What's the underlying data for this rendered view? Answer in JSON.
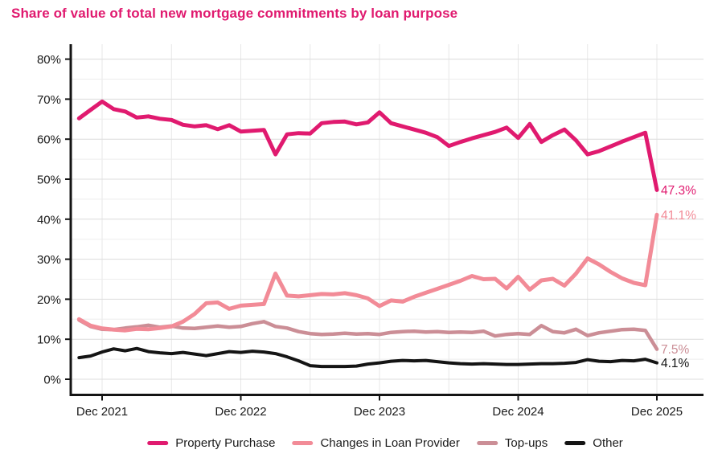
{
  "chart_data": {
    "type": "line",
    "title": "Share of value of total new mortgage commitments by loan purpose",
    "frequency": "monthly",
    "x_start": "Oct 2021",
    "x_end": "Dec 2025",
    "months": [
      "Oct 2021",
      "Nov 2021",
      "Dec 2021",
      "Jan 2022",
      "Feb 2022",
      "Mar 2022",
      "Apr 2022",
      "May 2022",
      "Jun 2022",
      "Jul 2022",
      "Aug 2022",
      "Sep 2022",
      "Oct 2022",
      "Nov 2022",
      "Dec 2022",
      "Jan 2023",
      "Feb 2023",
      "Mar 2023",
      "Apr 2023",
      "May 2023",
      "Jun 2023",
      "Jul 2023",
      "Aug 2023",
      "Sep 2023",
      "Oct 2023",
      "Nov 2023",
      "Dec 2023",
      "Jan 2024",
      "Feb 2024",
      "Mar 2024",
      "Apr 2024",
      "May 2024",
      "Jun 2024",
      "Jul 2024",
      "Aug 2024",
      "Sep 2024",
      "Oct 2024",
      "Nov 2024",
      "Dec 2024",
      "Jan 2025",
      "Feb 2025",
      "Mar 2025",
      "Apr 2025",
      "May 2025",
      "Jun 2025",
      "Jul 2025",
      "Aug 2025",
      "Sep 2025",
      "Oct 2025",
      "Nov 2025",
      "Dec 2025"
    ],
    "x_tick_labels": [
      "Dec 2021",
      "Dec 2022",
      "Dec 2023",
      "Dec 2024",
      "Dec 2025"
    ],
    "x_tick_month_indices": [
      2,
      14,
      26,
      38,
      50
    ],
    "x_gridline_month_indices": [
      2,
      8,
      14,
      20,
      26,
      32,
      38,
      44,
      50
    ],
    "y_tick_labels": [
      "0%",
      "10%",
      "20%",
      "30%",
      "40%",
      "50%",
      "60%",
      "70%",
      "80%"
    ],
    "y_tick_values": [
      0,
      10,
      20,
      30,
      40,
      50,
      60,
      70,
      80
    ],
    "y_minor_step_percent": 5,
    "ylim": [
      0,
      80
    ],
    "grid": true,
    "legend_position": "bottom",
    "axis_color": "#141414",
    "major_gridline_color": "#dcdcdc",
    "minor_gridline_color": "#ededed",
    "series": [
      {
        "name": "Property Purchase",
        "color": "#E01A6F",
        "line_width": 5,
        "end_label": "47.3%",
        "values": [
          65.2,
          67.3,
          69.4,
          67.5,
          66.9,
          65.4,
          65.7,
          65.1,
          64.8,
          63.6,
          63.2,
          63.5,
          62.5,
          63.5,
          61.9,
          62.1,
          62.3,
          56.2,
          61.2,
          61.5,
          61.4,
          64.0,
          64.3,
          64.4,
          63.7,
          64.2,
          66.7,
          64.0,
          63.2,
          62.4,
          61.6,
          60.5,
          58.3,
          59.3,
          60.2,
          61.0,
          61.8,
          62.9,
          60.3,
          63.8,
          59.3,
          61.0,
          62.4,
          59.7,
          56.2,
          57.0,
          58.2,
          59.4,
          60.5,
          61.6,
          47.3
        ]
      },
      {
        "name": "Changes in Loan Provider",
        "color": "#F28B97",
        "line_width": 5,
        "end_label": "41.1%",
        "values": [
          15.0,
          13.4,
          12.7,
          12.4,
          12.2,
          12.6,
          12.5,
          12.8,
          13.2,
          14.4,
          16.3,
          19.0,
          19.2,
          17.6,
          18.4,
          18.6,
          18.8,
          26.4,
          20.9,
          20.7,
          21.0,
          21.3,
          21.2,
          21.5,
          21.0,
          20.2,
          18.3,
          19.7,
          19.4,
          20.6,
          21.6,
          22.6,
          23.6,
          24.6,
          25.8,
          25.0,
          25.1,
          22.7,
          25.6,
          22.4,
          24.7,
          25.1,
          23.4,
          26.4,
          30.2,
          28.7,
          26.8,
          25.2,
          24.1,
          23.5,
          41.1
        ]
      },
      {
        "name": "Top-ups",
        "color": "#CB8E96",
        "line_width": 4.5,
        "end_label": "7.5%",
        "values": [
          14.8,
          13.2,
          12.5,
          12.4,
          12.8,
          13.1,
          13.5,
          13.0,
          13.3,
          12.8,
          12.7,
          13.0,
          13.3,
          13.0,
          13.2,
          13.9,
          14.4,
          13.2,
          12.8,
          11.9,
          11.4,
          11.2,
          11.3,
          11.5,
          11.3,
          11.4,
          11.2,
          11.7,
          11.9,
          12.0,
          11.8,
          11.9,
          11.7,
          11.8,
          11.7,
          12.0,
          10.8,
          11.2,
          11.4,
          11.2,
          13.4,
          11.9,
          11.6,
          12.5,
          10.9,
          11.6,
          12.0,
          12.4,
          12.5,
          12.2,
          7.5
        ]
      },
      {
        "name": "Other",
        "color": "#141414",
        "line_width": 4,
        "end_label": "4.1%",
        "values": [
          5.4,
          5.8,
          6.8,
          7.6,
          7.1,
          7.7,
          6.9,
          6.6,
          6.4,
          6.7,
          6.3,
          5.9,
          6.4,
          6.9,
          6.7,
          7.0,
          6.8,
          6.4,
          5.6,
          4.6,
          3.4,
          3.2,
          3.2,
          3.2,
          3.3,
          3.8,
          4.1,
          4.5,
          4.7,
          4.6,
          4.7,
          4.4,
          4.1,
          3.9,
          3.8,
          3.9,
          3.8,
          3.7,
          3.7,
          3.8,
          3.9,
          3.9,
          4.0,
          4.2,
          4.9,
          4.5,
          4.4,
          4.7,
          4.6,
          5.0,
          4.1
        ]
      }
    ]
  }
}
